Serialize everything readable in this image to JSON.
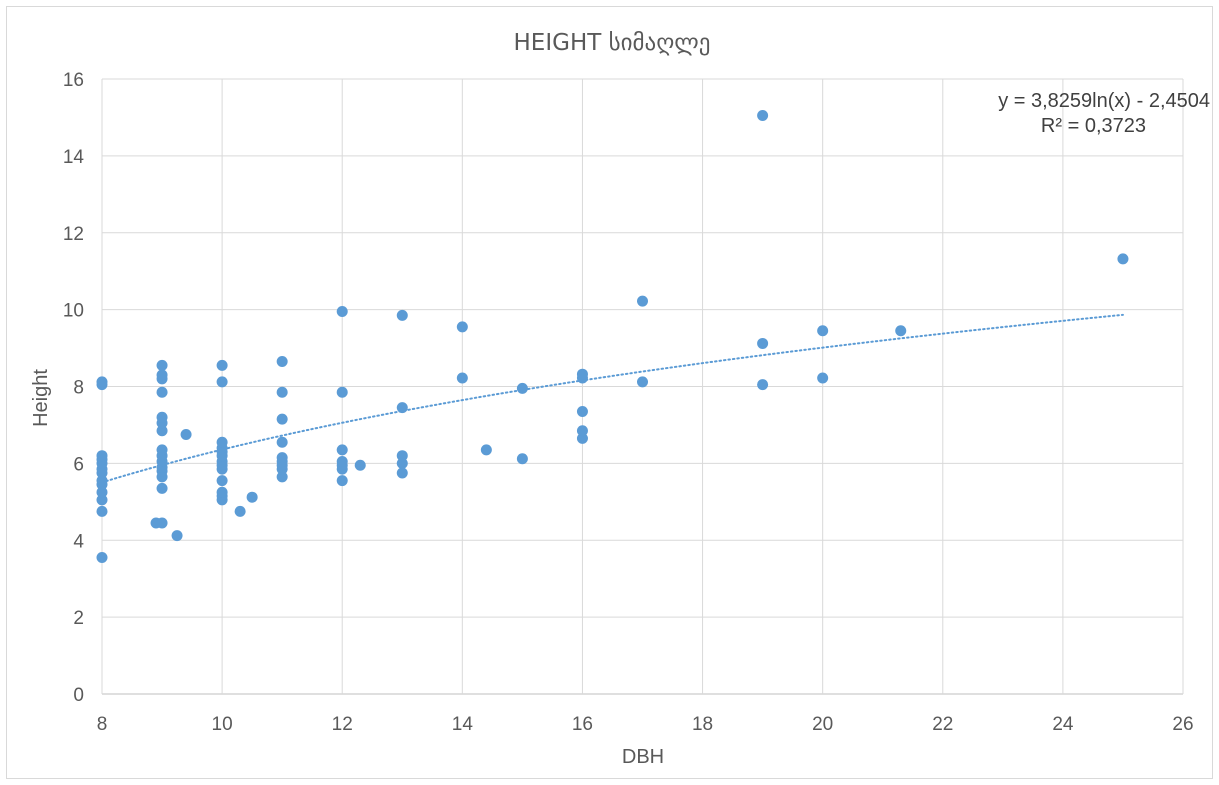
{
  "chart_data": {
    "type": "scatter",
    "title": "HEIGHT სიმაღლე",
    "xlabel": "DBH",
    "ylabel": "Height",
    "xlim": [
      8,
      26
    ],
    "ylim": [
      0,
      16
    ],
    "xticks": [
      8,
      10,
      12,
      14,
      16,
      18,
      20,
      22,
      24,
      26
    ],
    "yticks": [
      0,
      2,
      4,
      6,
      8,
      10,
      12,
      14,
      16
    ],
    "grid": true,
    "legend": "none",
    "series": [
      {
        "color": "#5b9bd5",
        "points": [
          [
            8,
            3.55
          ],
          [
            8,
            4.75
          ],
          [
            8,
            5.05
          ],
          [
            8,
            5.25
          ],
          [
            8,
            5.45
          ],
          [
            8,
            5.55
          ],
          [
            8,
            5.75
          ],
          [
            8,
            5.85
          ],
          [
            8,
            6.0
          ],
          [
            8,
            6.1
          ],
          [
            8,
            6.2
          ],
          [
            8,
            8.05
          ],
          [
            8,
            8.12
          ],
          [
            8.9,
            4.45
          ],
          [
            9,
            4.45
          ],
          [
            9,
            5.35
          ],
          [
            9,
            5.65
          ],
          [
            9,
            5.8
          ],
          [
            9,
            5.9
          ],
          [
            9,
            6.05
          ],
          [
            9,
            6.2
          ],
          [
            9,
            6.35
          ],
          [
            9,
            6.85
          ],
          [
            9,
            7.05
          ],
          [
            9,
            7.2
          ],
          [
            9,
            7.85
          ],
          [
            9,
            8.2
          ],
          [
            9,
            8.3
          ],
          [
            9,
            8.55
          ],
          [
            9.25,
            4.12
          ],
          [
            9.4,
            6.75
          ],
          [
            10,
            5.05
          ],
          [
            10,
            5.15
          ],
          [
            10,
            5.25
          ],
          [
            10,
            5.55
          ],
          [
            10,
            5.85
          ],
          [
            10,
            5.95
          ],
          [
            10,
            6.05
          ],
          [
            10,
            6.2
          ],
          [
            10,
            6.3
          ],
          [
            10,
            6.4
          ],
          [
            10,
            6.55
          ],
          [
            10,
            8.12
          ],
          [
            10,
            8.55
          ],
          [
            10.3,
            4.75
          ],
          [
            10.5,
            5.12
          ],
          [
            11,
            5.65
          ],
          [
            11,
            5.85
          ],
          [
            11,
            5.95
          ],
          [
            11,
            6.05
          ],
          [
            11,
            6.15
          ],
          [
            11,
            6.55
          ],
          [
            11,
            7.15
          ],
          [
            11,
            7.85
          ],
          [
            11,
            8.65
          ],
          [
            12,
            5.55
          ],
          [
            12,
            5.85
          ],
          [
            12,
            5.95
          ],
          [
            12,
            6.05
          ],
          [
            12,
            6.35
          ],
          [
            12,
            7.85
          ],
          [
            12,
            9.95
          ],
          [
            12.3,
            5.95
          ],
          [
            13,
            5.75
          ],
          [
            13,
            6.0
          ],
          [
            13,
            6.2
          ],
          [
            13,
            7.45
          ],
          [
            13,
            9.85
          ],
          [
            14,
            8.22
          ],
          [
            14,
            9.55
          ],
          [
            14.4,
            6.35
          ],
          [
            15,
            6.12
          ],
          [
            15,
            7.95
          ],
          [
            16,
            6.65
          ],
          [
            16,
            6.85
          ],
          [
            16,
            7.35
          ],
          [
            16,
            8.22
          ],
          [
            16,
            8.32
          ],
          [
            17,
            8.12
          ],
          [
            17,
            10.22
          ],
          [
            19,
            8.05
          ],
          [
            19,
            9.12
          ],
          [
            19,
            15.05
          ],
          [
            20,
            8.22
          ],
          [
            20,
            9.45
          ],
          [
            21.3,
            9.45
          ],
          [
            25,
            11.32
          ]
        ]
      }
    ],
    "trendline": {
      "type": "logarithmic",
      "a": 3.8259,
      "b": -2.4504,
      "x_range": [
        8,
        25
      ],
      "color": "#5b9bd5",
      "equation_label": "y = 3,8259ln(x) - 2,4504",
      "r2_label": "R² = 0,3723"
    }
  }
}
